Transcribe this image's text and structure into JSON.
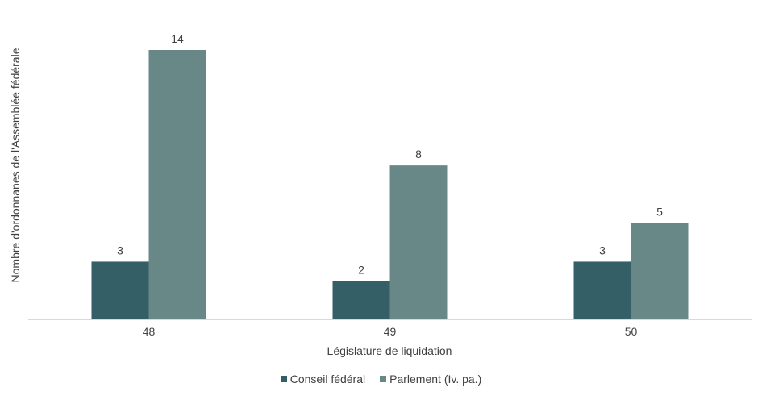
{
  "chart_data": {
    "type": "bar",
    "categories": [
      "48",
      "49",
      "50"
    ],
    "series": [
      {
        "name": "Conseil fédéral",
        "values": [
          3,
          2,
          3
        ],
        "color": "#355f66"
      },
      {
        "name": "Parlement (Iv. pa.)",
        "values": [
          14,
          8,
          5
        ],
        "color": "#688888"
      }
    ],
    "xlabel": "Législature de liquidation",
    "ylabel": "Nombre d'ordonnanes de l'Assemblée fédérale",
    "ylim": [
      0,
      14
    ],
    "grid": false,
    "legend": "bottom",
    "data_labels": true
  }
}
